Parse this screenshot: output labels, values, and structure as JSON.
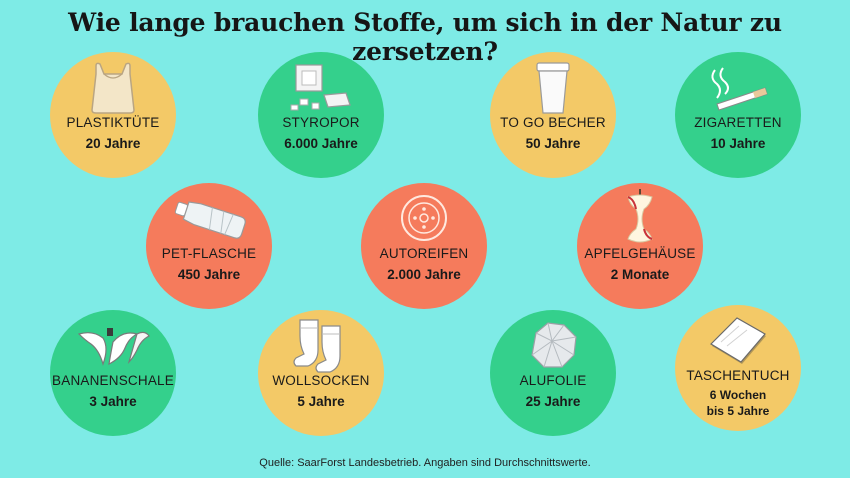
{
  "title": "Wie lange brauchen Stoffe, um sich in der Natur zu zersetzen?",
  "items": [
    {
      "name": "PLASTIKTÜTE",
      "duration": "20 Jahre",
      "color": "#f3c967",
      "icon": "plastic-bag-icon"
    },
    {
      "name": "STYROPOR",
      "duration": "6.000 Jahre",
      "color": "#34d08c",
      "icon": "styrofoam-icon"
    },
    {
      "name": "TO GO BECHER",
      "duration": "50 Jahre",
      "color": "#f3c967",
      "icon": "coffee-cup-icon"
    },
    {
      "name": "ZIGARETTEN",
      "duration": "10 Jahre",
      "color": "#34d08c",
      "icon": "cigarette-icon"
    },
    {
      "name": "PET-FLASCHE",
      "duration": "450 Jahre",
      "color": "#f57b5c",
      "icon": "bottle-icon"
    },
    {
      "name": "AUTOREIFEN",
      "duration": "2.000 Jahre",
      "color": "#f57b5c",
      "icon": "tire-icon"
    },
    {
      "name": "APFELGEHÄUSE",
      "duration": "2 Monate",
      "color": "#f57b5c",
      "icon": "apple-core-icon"
    },
    {
      "name": "BANANENSCHALE",
      "duration": "3 Jahre",
      "color": "#34d08c",
      "icon": "banana-peel-icon"
    },
    {
      "name": "WOLLSOCKEN",
      "duration": "5 Jahre",
      "color": "#f3c967",
      "icon": "socks-icon"
    },
    {
      "name": "ALUFOLIE",
      "duration": "25 Jahre",
      "color": "#34d08c",
      "icon": "foil-ball-icon"
    },
    {
      "name": "TASCHENTUCH",
      "duration_line1": "6 Wochen",
      "duration_line2": "bis 5 Jahre",
      "color": "#f3c967",
      "icon": "tissue-icon"
    }
  ],
  "source": "Quelle: SaarForst Landesbetrieb. Angaben sind Durchschnittswerte."
}
